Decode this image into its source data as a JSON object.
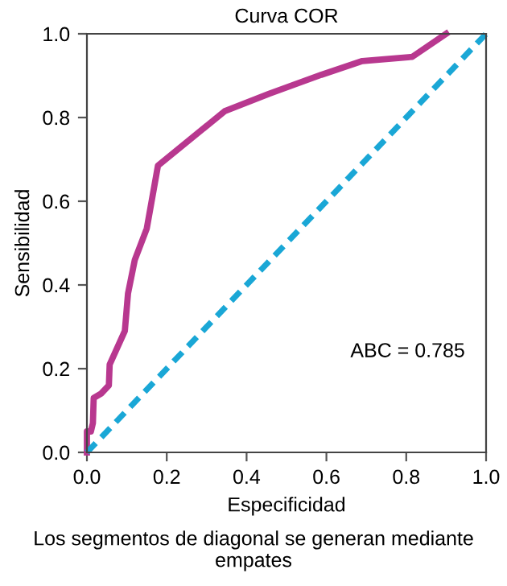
{
  "chart_data": {
    "type": "line",
    "title": "Curva COR",
    "xlabel": "Especificidad",
    "ylabel": "Sensibilidad",
    "annotations": [
      "ABC = 0.785",
      "Los segmentos de diagonal se generan mediante empates"
    ],
    "series": [
      {
        "color": "#b8388f",
        "line_style": "solid",
        "x": [
          0,
          0,
          0.01,
          0.015,
          0.017,
          0.035,
          0.055,
          0.057,
          0.095,
          0.103,
          0.12,
          0.15,
          0.178,
          0.345,
          0.457,
          0.587,
          0.69,
          0.815,
          0.9
        ],
        "values": [
          0,
          0.05,
          0.05,
          0.07,
          0.13,
          0.14,
          0.16,
          0.21,
          0.29,
          0.38,
          0.46,
          0.535,
          0.685,
          0.815,
          0.857,
          0.902,
          0.935,
          0.945,
          1.0
        ]
      },
      {
        "color": "#1aa7d6",
        "line_style": "dashed",
        "x": [
          0,
          1
        ],
        "values": [
          0,
          1
        ]
      }
    ],
    "xlim": [
      0,
      1
    ],
    "ylim": [
      0,
      1
    ],
    "xticks": [
      {
        "value": 0,
        "label": "0.0"
      },
      0.2,
      0.4,
      0.6,
      0.8,
      {
        "value": 1,
        "label": "1.0"
      }
    ],
    "yticks": [
      {
        "value": 0,
        "label": "0.0"
      },
      0.2,
      0.4,
      0.6,
      0.8,
      {
        "value": 1,
        "label": "1.0"
      }
    ],
    "grid": false,
    "legend": false
  }
}
